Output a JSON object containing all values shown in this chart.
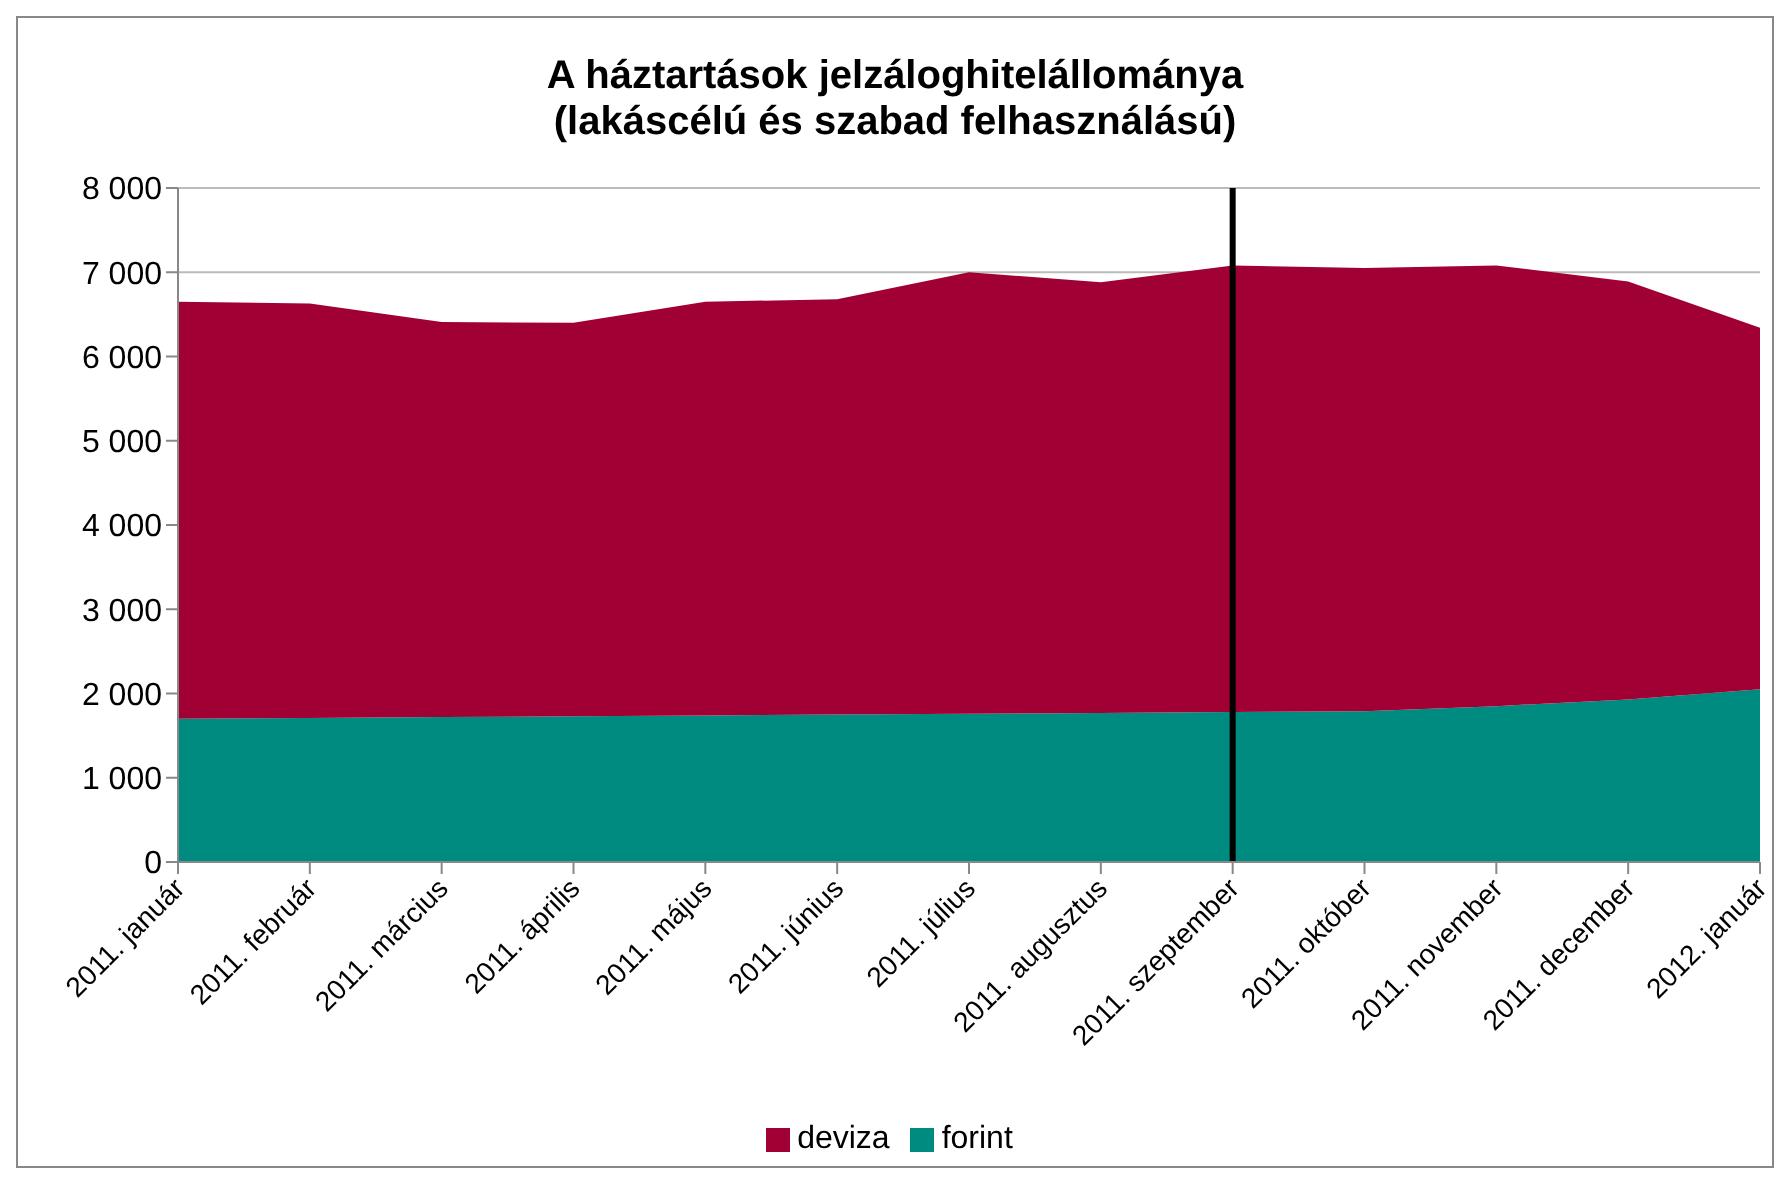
{
  "chart_data": {
    "type": "area",
    "stacked": true,
    "title": "A háztartások jelzáloghitelállománya\n(lakáscélú és szabad felhasználású)",
    "categories": [
      "2011. január",
      "2011. február",
      "2011. március",
      "2011. április",
      "2011. május",
      "2011. június",
      "2011. július",
      "2011. augusztus",
      "2011. szeptember",
      "2011. október",
      "2011. november",
      "2011. december",
      "2012. január"
    ],
    "series": [
      {
        "name": "forint",
        "color": "#008b80",
        "values": [
          1700,
          1710,
          1720,
          1730,
          1740,
          1750,
          1760,
          1770,
          1780,
          1790,
          1850,
          1930,
          2050
        ]
      },
      {
        "name": "deviza",
        "color": "#a10035",
        "values": [
          4950,
          4920,
          4690,
          4670,
          4910,
          4930,
          5240,
          5110,
          5300,
          5260,
          5230,
          4960,
          4290
        ]
      }
    ],
    "ylim": [
      0,
      8000
    ],
    "yticks": [
      0,
      {
        "value": 1000,
        "label": "1 000"
      },
      {
        "value": 2000,
        "label": "2 000"
      },
      {
        "value": 3000,
        "label": "3 000"
      },
      {
        "value": 4000,
        "label": "4 000"
      },
      {
        "value": 5000,
        "label": "5 000"
      },
      {
        "value": 6000,
        "label": "6 000"
      },
      {
        "value": 7000,
        "label": "7 000"
      },
      {
        "value": 8000,
        "label": "8 000"
      }
    ],
    "grid": "y",
    "legend": "bottom",
    "ref_lines": [
      {
        "axis": "x",
        "value": "2011. szeptember",
        "color": "#000000"
      }
    ]
  }
}
